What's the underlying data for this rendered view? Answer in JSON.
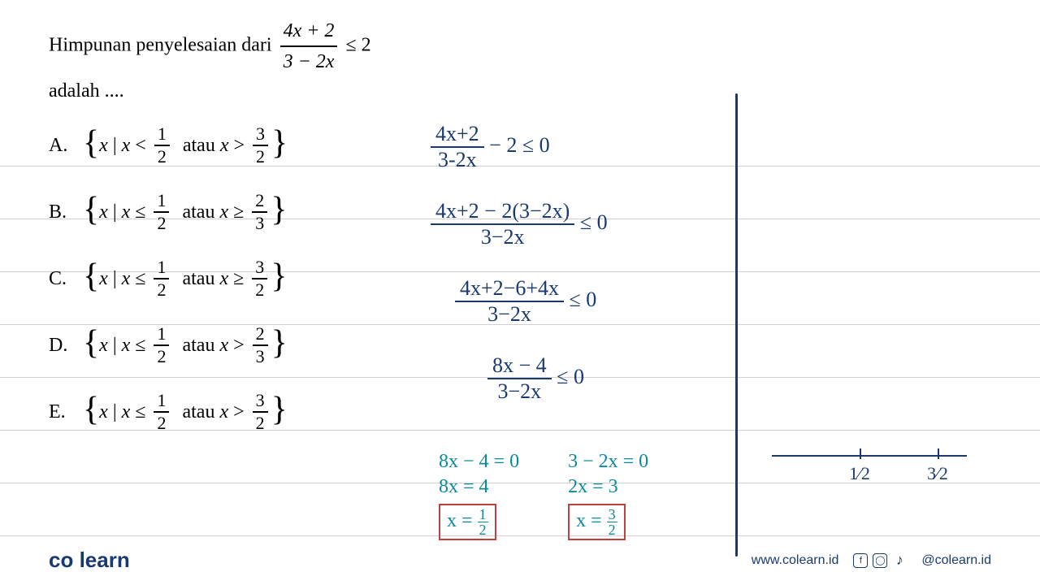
{
  "question": {
    "prefix": "Himpunan penyelesaian dari ",
    "frac_num": "4x + 2",
    "frac_den": "3 − 2x",
    "suffix": " ≤ 2",
    "line2": "adalah ...."
  },
  "answers": [
    {
      "label": "A.",
      "var": "x",
      "left_op": "<",
      "left_val_num": "1",
      "left_val_den": "2",
      "word": "atau",
      "right_op": ">",
      "right_val_num": "3",
      "right_val_den": "2"
    },
    {
      "label": "B.",
      "var": "x",
      "left_op": "≤",
      "left_val_num": "1",
      "left_val_den": "2",
      "word": "atau",
      "right_op": "≥",
      "right_val_num": "2",
      "right_val_den": "3"
    },
    {
      "label": "C.",
      "var": "x",
      "left_op": "≤",
      "left_val_num": "1",
      "left_val_den": "2",
      "word": "atau",
      "right_op": "≥",
      "right_val_num": "3",
      "right_val_den": "2"
    },
    {
      "label": "D.",
      "var": "x",
      "left_op": "≤",
      "left_val_num": "1",
      "left_val_den": "2",
      "word": "atau",
      "right_op": ">",
      "right_val_num": "2",
      "right_val_den": "3"
    },
    {
      "label": "E.",
      "var": "x",
      "left_op": "≤",
      "left_val_num": "1",
      "left_val_den": "2",
      "word": "atau",
      "right_op": ">",
      "right_val_num": "3",
      "right_val_den": "2"
    }
  ],
  "work": {
    "color_ink": "#1a3a6e",
    "color_teal": "#0a8a9a",
    "color_box": "#c04040",
    "step1_num": "4x+2",
    "step1_den": "3-2x",
    "step1_rest": " − 2 ≤ 0",
    "step2_num": "4x+2 − 2(3−2x)",
    "step2_den": "3−2x",
    "step2_rest": " ≤ 0",
    "step3_num": "4x+2−6+4x",
    "step3_den": "3−2x",
    "step3_rest": " ≤ 0",
    "step4_num": "8x − 4",
    "step4_den": "3−2x",
    "step4_rest": " ≤ 0",
    "rootA_l1": "8x − 4 = 0",
    "rootA_l2": "8x = 4",
    "rootA_l3_pre": "x = ",
    "rootA_l3_num": "1",
    "rootA_l3_den": "2",
    "rootB_l1": "3 − 2x = 0",
    "rootB_l2": "2x = 3",
    "rootB_l3_pre": "x = ",
    "rootB_l3_num": "3",
    "rootB_l3_den": "2"
  },
  "numberline": {
    "tick1_pos_pct": 45,
    "tick2_pos_pct": 85,
    "label1": "1⁄2",
    "label2": "3⁄2"
  },
  "footer": {
    "logo_co": "co",
    "logo_learn": "learn",
    "website": "www.colearn.id",
    "handle": "@colearn.id"
  }
}
